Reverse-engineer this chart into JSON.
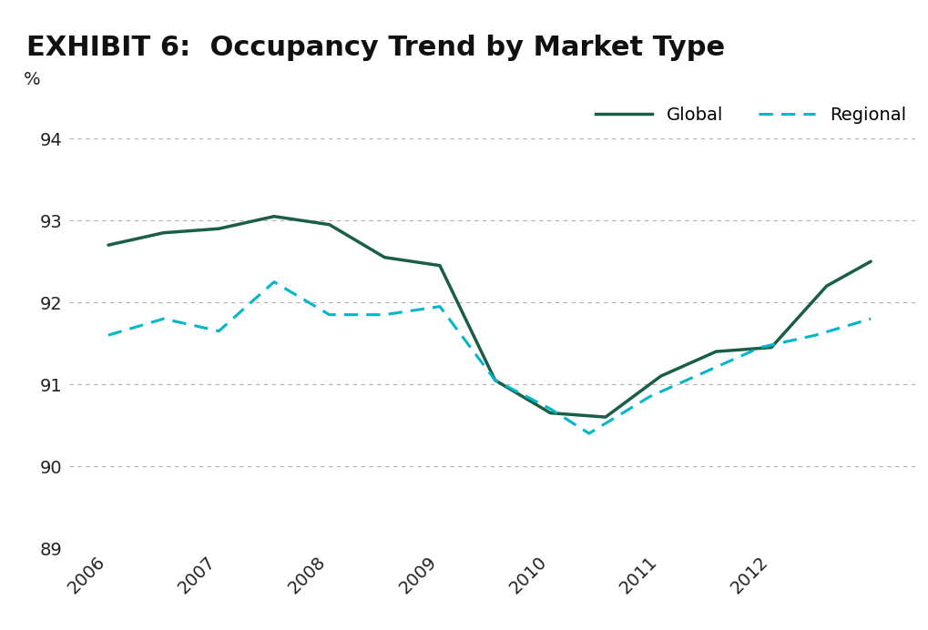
{
  "title": "EXHIBIT 6:  Occupancy Trend by Market Type",
  "title_bg_color": "#d4d4d4",
  "bg_color": "#ffffff",
  "ylabel": "%",
  "ylim": [
    89,
    94.5
  ],
  "yticks": [
    89,
    90,
    91,
    92,
    93,
    94
  ],
  "grid_color": "#aaaaaa",
  "x_labels": [
    "2006",
    "2007",
    "2008",
    "2009",
    "2010",
    "2011",
    "2012"
  ],
  "global_color": "#1a5e45",
  "regional_color": "#00b5cc",
  "global_x": [
    2006.0,
    2006.5,
    2007.0,
    2007.5,
    2008.0,
    2008.5,
    2009.0,
    2009.5,
    2010.0,
    2010.5,
    2011.0,
    2011.5,
    2012.0,
    2012.5,
    2012.9
  ],
  "global_y": [
    92.7,
    92.85,
    92.9,
    93.05,
    92.95,
    92.55,
    92.45,
    91.05,
    90.65,
    90.6,
    91.1,
    91.4,
    91.45,
    92.2,
    92.5
  ],
  "regional_x": [
    2006.0,
    2006.5,
    2007.0,
    2007.5,
    2008.0,
    2008.5,
    2009.0,
    2009.5,
    2010.0,
    2010.35,
    2010.9,
    2011.4,
    2011.9,
    2012.4,
    2012.9
  ],
  "regional_y": [
    91.6,
    91.8,
    91.65,
    92.25,
    91.85,
    91.85,
    91.95,
    91.05,
    90.7,
    90.4,
    90.85,
    91.15,
    91.45,
    91.6,
    91.8
  ],
  "legend_global_label": "Global",
  "legend_regional_label": "Regional",
  "xlim": [
    2005.65,
    2013.3
  ],
  "title_fontsize": 22,
  "tick_fontsize": 14,
  "ylabel_fontsize": 14
}
